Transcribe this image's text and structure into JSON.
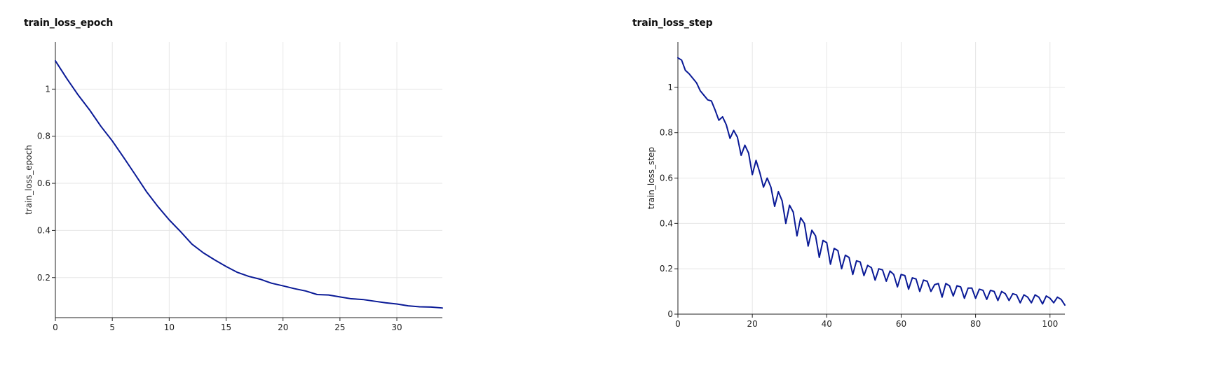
{
  "colors": {
    "line": "#0a1a96",
    "grid": "#e6e6e6",
    "axis": "#222222"
  },
  "chart_data": [
    {
      "type": "line",
      "title": "train_loss_epoch",
      "xlabel": "",
      "ylabel": "train_loss_epoch",
      "xlim": [
        0,
        34
      ],
      "ylim": [
        0.03,
        1.2
      ],
      "grid": true,
      "legend": "none",
      "x_ticks": [
        0,
        5,
        10,
        15,
        20,
        25,
        30
      ],
      "y_ticks": [
        0.2,
        0.4,
        0.6,
        0.8,
        1
      ],
      "series": [
        {
          "x": [
            0,
            1,
            2,
            3,
            4,
            5,
            6,
            7,
            8,
            9,
            10,
            11,
            12,
            13,
            14,
            15,
            16,
            17,
            18,
            19,
            20,
            21,
            22,
            23,
            24,
            25,
            26,
            27,
            28,
            29,
            30,
            31,
            32,
            33,
            34
          ],
          "values": [
            1.12,
            1.045,
            0.975,
            0.912,
            0.842,
            0.78,
            0.71,
            0.638,
            0.565,
            0.502,
            0.445,
            0.395,
            0.342,
            0.305,
            0.275,
            0.247,
            0.222,
            0.205,
            0.193,
            0.176,
            0.165,
            0.153,
            0.143,
            0.128,
            0.126,
            0.118,
            0.11,
            0.107,
            0.1,
            0.093,
            0.088,
            0.08,
            0.076,
            0.075,
            0.071
          ]
        }
      ]
    },
    {
      "type": "line",
      "title": "train_loss_step",
      "xlabel": "",
      "ylabel": "train_loss_step",
      "xlim": [
        0,
        104
      ],
      "ylim": [
        0,
        1.2
      ],
      "grid": true,
      "legend": "none",
      "x_ticks": [
        0,
        20,
        40,
        60,
        80,
        100
      ],
      "y_ticks": [
        0,
        0.2,
        0.4,
        0.6,
        0.8,
        1
      ],
      "series": [
        {
          "x": [
            0,
            1,
            2,
            3,
            4,
            5,
            6,
            7,
            8,
            9,
            10,
            11,
            12,
            13,
            14,
            15,
            16,
            17,
            18,
            19,
            20,
            21,
            22,
            23,
            24,
            25,
            26,
            27,
            28,
            29,
            30,
            31,
            32,
            33,
            34,
            35,
            36,
            37,
            38,
            39,
            40,
            41,
            42,
            43,
            44,
            45,
            46,
            47,
            48,
            49,
            50,
            51,
            52,
            53,
            54,
            55,
            56,
            57,
            58,
            59,
            60,
            61,
            62,
            63,
            64,
            65,
            66,
            67,
            68,
            69,
            70,
            71,
            72,
            73,
            74,
            75,
            76,
            77,
            78,
            79,
            80,
            81,
            82,
            83,
            84,
            85,
            86,
            87,
            88,
            89,
            90,
            91,
            92,
            93,
            94,
            95,
            96,
            97,
            98,
            99,
            100,
            101,
            102,
            103,
            104
          ],
          "values": [
            1.13,
            1.12,
            1.075,
            1.06,
            1.04,
            1.02,
            0.985,
            0.965,
            0.945,
            0.94,
            0.9,
            0.855,
            0.87,
            0.835,
            0.775,
            0.81,
            0.78,
            0.7,
            0.745,
            0.71,
            0.615,
            0.678,
            0.625,
            0.56,
            0.6,
            0.56,
            0.475,
            0.54,
            0.5,
            0.4,
            0.48,
            0.45,
            0.345,
            0.425,
            0.4,
            0.3,
            0.37,
            0.345,
            0.25,
            0.325,
            0.315,
            0.22,
            0.29,
            0.28,
            0.2,
            0.26,
            0.25,
            0.175,
            0.235,
            0.23,
            0.17,
            0.215,
            0.205,
            0.15,
            0.2,
            0.195,
            0.145,
            0.19,
            0.175,
            0.12,
            0.175,
            0.17,
            0.11,
            0.16,
            0.155,
            0.1,
            0.15,
            0.145,
            0.1,
            0.13,
            0.135,
            0.075,
            0.135,
            0.125,
            0.08,
            0.125,
            0.12,
            0.07,
            0.115,
            0.115,
            0.07,
            0.11,
            0.105,
            0.065,
            0.105,
            0.1,
            0.06,
            0.1,
            0.09,
            0.06,
            0.09,
            0.085,
            0.05,
            0.085,
            0.075,
            0.05,
            0.085,
            0.075,
            0.045,
            0.08,
            0.07,
            0.05,
            0.075,
            0.065,
            0.04
          ]
        }
      ]
    }
  ]
}
